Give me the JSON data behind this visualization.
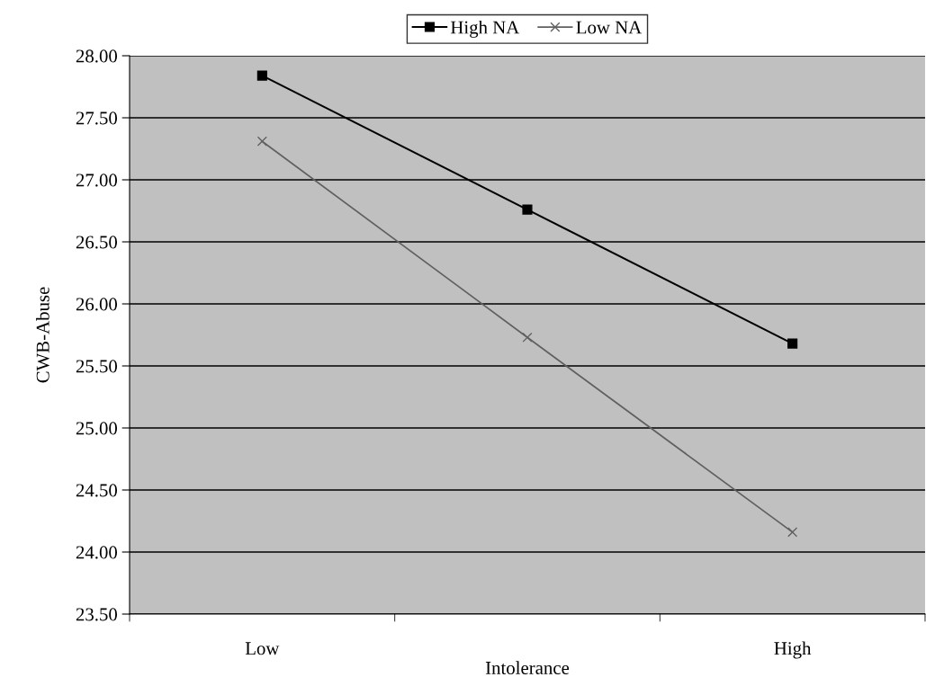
{
  "chart_data": {
    "type": "line",
    "xlabel": "Intolerance",
    "ylabel": "CWB-Abuse",
    "categories": [
      "Low",
      null,
      "High"
    ],
    "series": [
      {
        "name": "High NA",
        "color": "#000000",
        "marker": "square",
        "values": [
          27.84,
          26.76,
          25.68
        ]
      },
      {
        "name": "Low NA",
        "color": "#606060",
        "marker": "cross",
        "values": [
          27.31,
          25.73,
          24.16
        ]
      }
    ],
    "ylim": [
      23.5,
      28.0
    ],
    "yticks": [
      {
        "value": 23.5,
        "label": "23.50"
      },
      {
        "value": 24.0,
        "label": "24.00"
      },
      {
        "value": 24.5,
        "label": "24.50"
      },
      {
        "value": 25.0,
        "label": "25.00"
      },
      {
        "value": 25.5,
        "label": "25.50"
      },
      {
        "value": 26.0,
        "label": "26.00"
      },
      {
        "value": 26.5,
        "label": "26.50"
      },
      {
        "value": 27.0,
        "label": "27.00"
      },
      {
        "value": 27.5,
        "label": "27.50"
      },
      {
        "value": 28.0,
        "label": "28.00"
      }
    ],
    "grid": "y",
    "legend": "top",
    "line_style": "solid"
  }
}
